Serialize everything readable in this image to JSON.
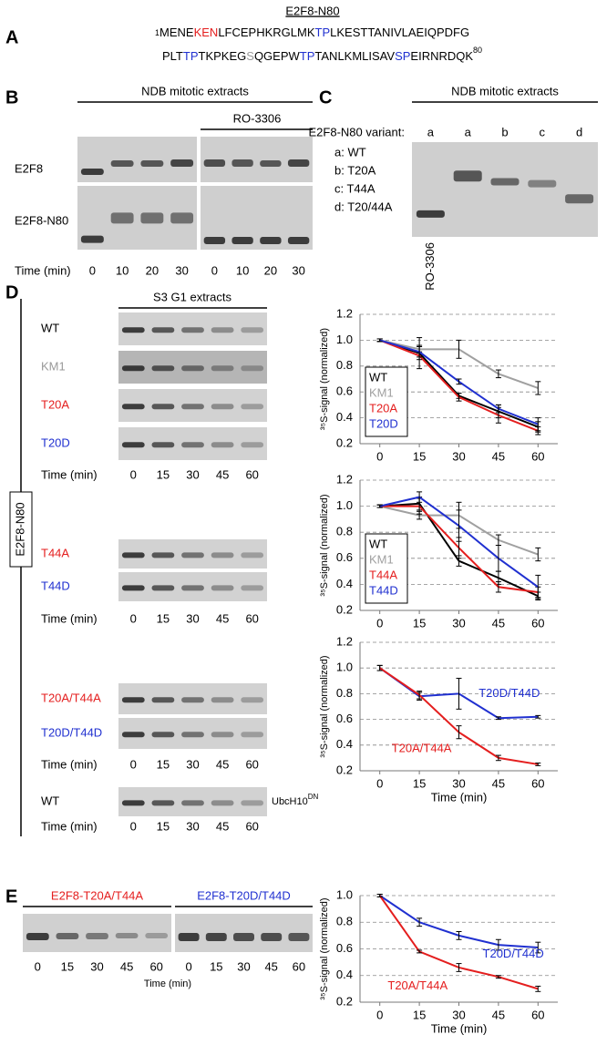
{
  "panel_A": {
    "letter": "A",
    "title": "E2F8-N80",
    "start": "1",
    "end": "80",
    "lines": [
      [
        {
          "text": "MENE",
          "color": "#000000"
        },
        {
          "text": "KEN",
          "color": "#e41e1e"
        },
        {
          "text": "LFCEPHKRGLMK",
          "color": "#000000"
        },
        {
          "text": "TP",
          "color": "#2030d0"
        },
        {
          "text": "LKESTTANIVLAEIQPDFG",
          "color": "#000000"
        }
      ],
      [
        {
          "text": "PLT",
          "color": "#000000"
        },
        {
          "text": "TP",
          "color": "#2030d0"
        },
        {
          "text": "TKPKEG",
          "color": "#000000"
        },
        {
          "text": "S",
          "color": "#999999"
        },
        {
          "text": "QGEPW",
          "color": "#000000"
        },
        {
          "text": "TP",
          "color": "#2030d0"
        },
        {
          "text": "TANLKMLISAV",
          "color": "#000000"
        },
        {
          "text": "SP",
          "color": "#2030d0"
        },
        {
          "text": "EIRNRDQK",
          "color": "#000000"
        }
      ]
    ]
  },
  "panel_B": {
    "letter": "B",
    "header": "NDB mitotic extracts",
    "treatment": "RO-3306",
    "rows": [
      "E2F8",
      "E2F8-N80"
    ],
    "time_label": "Time (min)",
    "times": [
      0,
      10,
      20,
      30,
      0,
      10,
      20,
      30
    ]
  },
  "panel_C": {
    "letter": "C",
    "header": "NDB mitotic extracts",
    "variant_label": "E2F8-N80 variant:",
    "lanes": [
      "a",
      "a",
      "b",
      "c",
      "d"
    ],
    "key": [
      "a: WT",
      "b: T20A",
      "c: T44A",
      "d: T20/44A"
    ],
    "control": "RO-3306"
  },
  "panel_D": {
    "letter": "D",
    "construct": "E2F8-N80",
    "header": "S3 G1 extracts",
    "blocks": [
      {
        "rows": [
          {
            "label": "WT",
            "color": "#000000"
          },
          {
            "label": "KM1",
            "color": "#999999"
          },
          {
            "label": "T20A",
            "color": "#e41e1e"
          },
          {
            "label": "T20D",
            "color": "#2030d0"
          }
        ],
        "time_label": "Time (min)",
        "times": [
          0,
          15,
          30,
          45,
          60
        ]
      },
      {
        "rows": [
          {
            "label": "T44A",
            "color": "#e41e1e"
          },
          {
            "label": "T44D",
            "color": "#2030d0"
          }
        ],
        "time_label": "Time (min)",
        "times": [
          0,
          15,
          30,
          45,
          60
        ]
      },
      {
        "rows": [
          {
            "label": "T20A/T44A",
            "color": "#e41e1e"
          },
          {
            "label": "T20D/T44D",
            "color": "#2030d0"
          }
        ],
        "time_label": "Time (min)",
        "times": [
          0,
          15,
          30,
          45,
          60
        ]
      },
      {
        "rows": [
          {
            "label": "WT",
            "color": "#000000"
          }
        ],
        "note": "UbcH10",
        "note_sup": "DN",
        "time_label": "Time (min)",
        "times": [
          0,
          15,
          30,
          45,
          60
        ]
      }
    ]
  },
  "panel_E": {
    "letter": "E",
    "groups": [
      {
        "label": "E2F8-T20A/T44A",
        "color": "#e41e1e"
      },
      {
        "label": "E2F8-T20D/T44D",
        "color": "#2030d0"
      }
    ],
    "time_label": "Time (min)",
    "times": [
      0,
      15,
      30,
      45,
      60,
      0,
      15,
      30,
      45,
      60
    ]
  },
  "chart_data": [
    {
      "type": "line",
      "ylabel": "³⁵S-signal (normalized)",
      "x": [
        0,
        15,
        30,
        45,
        60
      ],
      "xlim": [
        -7.5,
        67.5
      ],
      "xticks": [
        0,
        15,
        30,
        45,
        60
      ],
      "ylim": [
        0.2,
        1.2
      ],
      "yticks": [
        0.2,
        0.4,
        0.6,
        0.8,
        {
          "value": 1.0,
          "label": "1.0"
        },
        1.2
      ],
      "grid": true,
      "legend": "lower left",
      "series": [
        {
          "name": "WT",
          "color": "#000000",
          "values": [
            1.0,
            0.9,
            0.57,
            0.45,
            0.33
          ],
          "errors": [
            0.01,
            0.12,
            0.02,
            0.05,
            0.04
          ]
        },
        {
          "name": "KM1",
          "color": "#a0a0a0",
          "values": [
            1.0,
            0.93,
            0.93,
            0.74,
            0.63
          ],
          "errors": [
            0.01,
            0.03,
            0.07,
            0.03,
            0.05
          ]
        },
        {
          "name": "T20A",
          "color": "#e41e1e",
          "values": [
            1.0,
            0.88,
            0.56,
            0.42,
            0.3
          ],
          "errors": [
            0.01,
            0.03,
            0.03,
            0.06,
            0.03
          ]
        },
        {
          "name": "T20D",
          "color": "#2030d0",
          "values": [
            1.0,
            0.91,
            0.68,
            0.47,
            0.35
          ],
          "errors": [
            0.01,
            0.04,
            0.02,
            0.03,
            0.05
          ]
        }
      ]
    },
    {
      "type": "line",
      "ylabel": "³⁵S-signal (normalized)",
      "x": [
        0,
        15,
        30,
        45,
        60
      ],
      "xlim": [
        -7.5,
        67.5
      ],
      "xticks": [
        0,
        15,
        30,
        45,
        60
      ],
      "ylim": [
        0.2,
        1.2
      ],
      "yticks": [
        0.2,
        0.4,
        0.6,
        0.8,
        {
          "value": 1.0,
          "label": "1.0"
        },
        1.2
      ],
      "grid": true,
      "legend": "lower left",
      "series": [
        {
          "name": "WT",
          "color": "#000000",
          "values": [
            1.0,
            1.02,
            0.58,
            0.45,
            0.31
          ],
          "errors": [
            0.01,
            0.05,
            0.04,
            0.05,
            0.03
          ]
        },
        {
          "name": "KM1",
          "color": "#a0a0a0",
          "values": [
            1.0,
            0.93,
            0.93,
            0.74,
            0.63
          ],
          "errors": [
            0.01,
            0.03,
            0.1,
            0.04,
            0.05
          ]
        },
        {
          "name": "T44A",
          "color": "#e41e1e",
          "values": [
            1.0,
            1.0,
            0.68,
            0.38,
            0.34
          ],
          "errors": [
            0.01,
            0.06,
            0.08,
            0.04,
            0.04
          ]
        },
        {
          "name": "T44D",
          "color": "#2030d0",
          "values": [
            1.0,
            1.07,
            0.85,
            0.6,
            0.38
          ],
          "errors": [
            0.01,
            0.04,
            0.12,
            0.1,
            0.09
          ]
        }
      ]
    },
    {
      "type": "line",
      "ylabel": "³⁵S-signal (normalized)",
      "xlabel": "Time (min)",
      "x": [
        0,
        15,
        30,
        45,
        60
      ],
      "xlim": [
        -7.5,
        67.5
      ],
      "xticks": [
        0,
        15,
        30,
        45,
        60
      ],
      "ylim": [
        0.2,
        1.2
      ],
      "yticks": [
        0.2,
        0.4,
        0.6,
        0.8,
        {
          "value": 1.0,
          "label": "1.0"
        },
        1.2
      ],
      "grid": true,
      "legend": "inline",
      "series": [
        {
          "name": "T20D/T44D",
          "color": "#2030d0",
          "values": [
            1.0,
            0.78,
            0.8,
            0.61,
            0.62
          ],
          "errors": [
            0.02,
            0.03,
            0.12,
            0.01,
            0.01
          ]
        },
        {
          "name": "T20A/T44A",
          "color": "#e41e1e",
          "values": [
            1.0,
            0.79,
            0.5,
            0.3,
            0.25
          ],
          "errors": [
            0.02,
            0.03,
            0.05,
            0.02,
            0.01
          ]
        }
      ]
    },
    {
      "type": "line",
      "ylabel": "³⁵S-signal (normalized)",
      "xlabel": "Time (min)",
      "x": [
        0,
        15,
        30,
        45,
        60
      ],
      "xlim": [
        -7.5,
        67.5
      ],
      "xticks": [
        0,
        15,
        30,
        45,
        60
      ],
      "ylim": [
        0.2,
        1.0
      ],
      "yticks": [
        0.2,
        0.4,
        0.6,
        0.8,
        {
          "value": 1.0,
          "label": "1.0"
        }
      ],
      "grid": true,
      "legend": "inline",
      "series": [
        {
          "name": "T20D/T44D",
          "color": "#2030d0",
          "values": [
            1.0,
            0.8,
            0.7,
            0.63,
            0.61
          ],
          "errors": [
            0.01,
            0.03,
            0.03,
            0.04,
            0.04
          ]
        },
        {
          "name": "T20A/T44A",
          "color": "#e41e1e",
          "values": [
            1.0,
            0.58,
            0.46,
            0.39,
            0.3
          ],
          "errors": [
            0.01,
            0.01,
            0.03,
            0.01,
            0.02
          ]
        }
      ]
    }
  ]
}
